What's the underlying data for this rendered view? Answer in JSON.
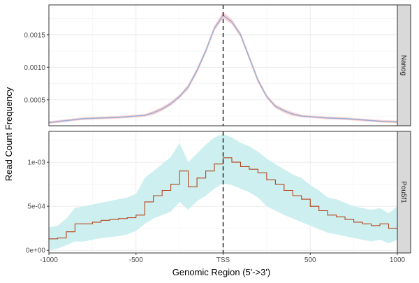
{
  "chart_data": {
    "type": "line",
    "xlabel": "Genomic Region (5'->3')",
    "ylabel": "Read Count Frequency",
    "x_ticks": [
      {
        "value": -1000,
        "label": "-1000"
      },
      {
        "value": -500,
        "label": "-500"
      },
      {
        "value": 0,
        "label": "TSS"
      },
      {
        "value": 500,
        "label": "500"
      },
      {
        "value": 1000,
        "label": "1000"
      }
    ],
    "xlim": [
      -1000,
      1000
    ],
    "reference_line": {
      "x": 0,
      "style": "dashed",
      "color": "#000000"
    },
    "grid": true,
    "panels": [
      {
        "strip": "Nanog",
        "ylim": [
          0.0001,
          0.00196
        ],
        "y_ticks": [
          {
            "value": 0.0005,
            "label": "0.0005"
          },
          {
            "value": 0.001,
            "label": "0.0010"
          },
          {
            "value": 0.0015,
            "label": "0.0015"
          }
        ],
        "line_color": "#9ab0d6",
        "ribbon_color": "#ffd1d1",
        "x": [
          -1000,
          -900,
          -800,
          -700,
          -600,
          -500,
          -450,
          -400,
          -350,
          -300,
          -250,
          -200,
          -150,
          -100,
          -50,
          0,
          50,
          100,
          150,
          200,
          250,
          300,
          350,
          400,
          450,
          500,
          600,
          700,
          800,
          900,
          1000
        ],
        "y": [
          0.00015,
          0.00018,
          0.00021,
          0.00022,
          0.00023,
          0.00025,
          0.00026,
          0.0003,
          0.00036,
          0.00044,
          0.00055,
          0.0007,
          0.00095,
          0.00125,
          0.0016,
          0.0018,
          0.0017,
          0.0015,
          0.00115,
          0.0008,
          0.00055,
          0.0004,
          0.00033,
          0.00028,
          0.00025,
          0.00024,
          0.00022,
          0.00021,
          0.00019,
          0.00017,
          0.00016
        ],
        "ribbon_half_width": [
          2e-05,
          2e-05,
          2e-05,
          2e-05,
          2e-05,
          2e-05,
          2e-05,
          3e-05,
          3e-05,
          3e-05,
          3e-05,
          4e-05,
          4e-05,
          4e-05,
          4e-05,
          5e-05,
          4e-05,
          4e-05,
          4e-05,
          4e-05,
          3e-05,
          3e-05,
          3e-05,
          3e-05,
          2e-05,
          2e-05,
          2e-05,
          2e-05,
          2e-05,
          2e-05,
          2e-05
        ]
      },
      {
        "strip": "Pou5f1",
        "ylim": [
          -3e-05,
          0.00135
        ],
        "y_ticks": [
          {
            "value": 0,
            "label": "0e+00"
          },
          {
            "value": 0.0005,
            "label": "5e-04"
          },
          {
            "value": 0.001,
            "label": "1e-03"
          }
        ],
        "line_color": "#b5451b",
        "ribbon_color": "#cdeff0",
        "x": [
          -1000,
          -950,
          -900,
          -850,
          -800,
          -750,
          -700,
          -650,
          -600,
          -550,
          -500,
          -450,
          -400,
          -350,
          -300,
          -250,
          -200,
          -150,
          -100,
          -50,
          0,
          50,
          100,
          150,
          200,
          250,
          300,
          350,
          400,
          450,
          500,
          550,
          600,
          650,
          700,
          750,
          800,
          850,
          900,
          950,
          1000
        ],
        "y": [
          0.00013,
          0.00014,
          0.00021,
          0.0003,
          0.0003,
          0.00032,
          0.00034,
          0.00035,
          0.00036,
          0.00037,
          0.0004,
          0.00055,
          0.00062,
          0.00068,
          0.00075,
          0.0009,
          0.00072,
          0.00082,
          0.0009,
          0.00098,
          0.00105,
          0.001,
          0.00095,
          0.00092,
          0.00088,
          0.0008,
          0.00075,
          0.00068,
          0.00062,
          0.00058,
          0.0005,
          0.00045,
          0.0004,
          0.00038,
          0.00035,
          0.00032,
          0.0003,
          0.00028,
          0.0003,
          0.00025,
          0.00031
        ],
        "ribbon_lower": [
          0.0,
          2e-05,
          6e-05,
          0.0001,
          0.0001,
          0.00012,
          0.00014,
          0.00015,
          0.00016,
          0.00018,
          0.00022,
          0.0003,
          0.00036,
          0.0004,
          0.00044,
          0.00055,
          0.00046,
          0.00056,
          0.00062,
          0.0007,
          0.00076,
          0.00074,
          0.0007,
          0.00066,
          0.0006,
          0.0005,
          0.00045,
          0.0004,
          0.00036,
          0.00032,
          0.00028,
          0.00024,
          0.0002,
          0.00018,
          0.00016,
          0.00014,
          0.00012,
          0.0001,
          0.00012,
          8e-05,
          0.00012
        ],
        "ribbon_upper": [
          0.00026,
          0.00028,
          0.00036,
          0.00048,
          0.0005,
          0.00052,
          0.00054,
          0.00056,
          0.00058,
          0.0006,
          0.00064,
          0.00082,
          0.0009,
          0.00098,
          0.00106,
          0.00122,
          0.001,
          0.0011,
          0.0012,
          0.00128,
          0.00132,
          0.00128,
          0.00122,
          0.00118,
          0.00112,
          0.00104,
          0.00098,
          0.00092,
          0.00086,
          0.00082,
          0.00074,
          0.00068,
          0.0006,
          0.00058,
          0.00054,
          0.0005,
          0.00048,
          0.00046,
          0.00048,
          0.00042,
          0.0005
        ]
      }
    ]
  }
}
